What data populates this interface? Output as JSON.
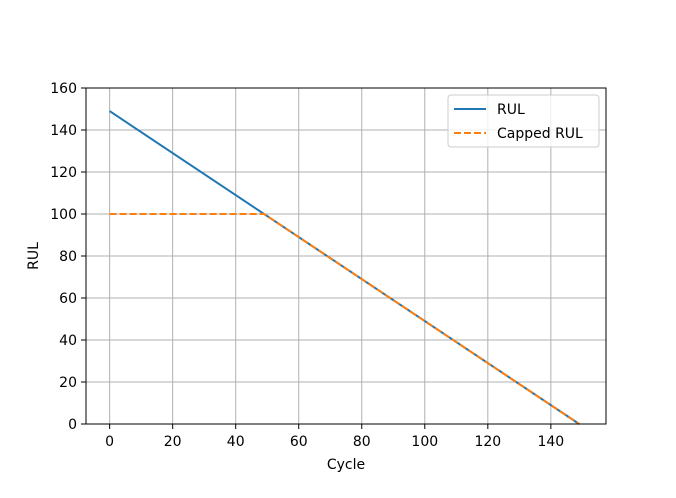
{
  "chart_data": {
    "type": "line",
    "xlabel": "Cycle",
    "ylabel": "RUL",
    "xlim": [
      -7.5,
      157.5
    ],
    "ylim": [
      0,
      160
    ],
    "xticks": [
      0,
      20,
      40,
      60,
      80,
      100,
      120,
      140
    ],
    "yticks": [
      0,
      20,
      40,
      60,
      80,
      100,
      120,
      140,
      160
    ],
    "grid": true,
    "legend_position": "upper right",
    "series": [
      {
        "name": "RUL",
        "color": "#1f77b4",
        "linestyle": "solid",
        "x": [
          0,
          50,
          100,
          149
        ],
        "y": [
          149,
          99,
          49,
          0
        ]
      },
      {
        "name": "Capped RUL",
        "color": "#ff7f0e",
        "linestyle": "dashed",
        "x": [
          0,
          49,
          100,
          149
        ],
        "y": [
          100,
          100,
          49,
          0
        ]
      }
    ]
  }
}
